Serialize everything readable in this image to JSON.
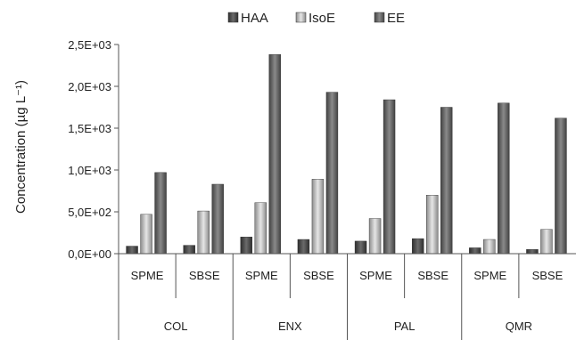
{
  "chart_data": {
    "type": "bar",
    "title": "",
    "xlabel": "",
    "ylabel": "Concentration (µg L⁻¹)",
    "ylim": [
      0,
      2500
    ],
    "yticks": [
      "0,0E+00",
      "5,0E+02",
      "1,0E+03",
      "1,5E+03",
      "2,0E+03",
      "2,5E+03"
    ],
    "grid": false,
    "legend_position": "top",
    "groups": [
      "COL",
      "ENX",
      "PAL",
      "QMR"
    ],
    "methods": [
      "SPME",
      "SBSE"
    ],
    "categories": [
      "COL SPME",
      "COL SBSE",
      "ENX SPME",
      "ENX SBSE",
      "PAL SPME",
      "PAL SBSE",
      "QMR SPME",
      "QMR SBSE"
    ],
    "category_labels": [
      "SPME",
      "SBSE",
      "SPME",
      "SBSE",
      "SPME",
      "SBSE",
      "SPME",
      "SBSE"
    ],
    "series": [
      {
        "name": "HAA",
        "color": "#4f4f4f",
        "values": [
          90,
          100,
          200,
          170,
          150,
          180,
          70,
          50
        ]
      },
      {
        "name": "IsoE",
        "color": "#b4b4b4",
        "values": [
          470,
          510,
          610,
          890,
          420,
          700,
          170,
          290
        ]
      },
      {
        "name": "EE",
        "color": "#6a6a6a",
        "values": [
          970,
          830,
          2380,
          1930,
          1840,
          1750,
          1800,
          1620
        ]
      }
    ]
  }
}
